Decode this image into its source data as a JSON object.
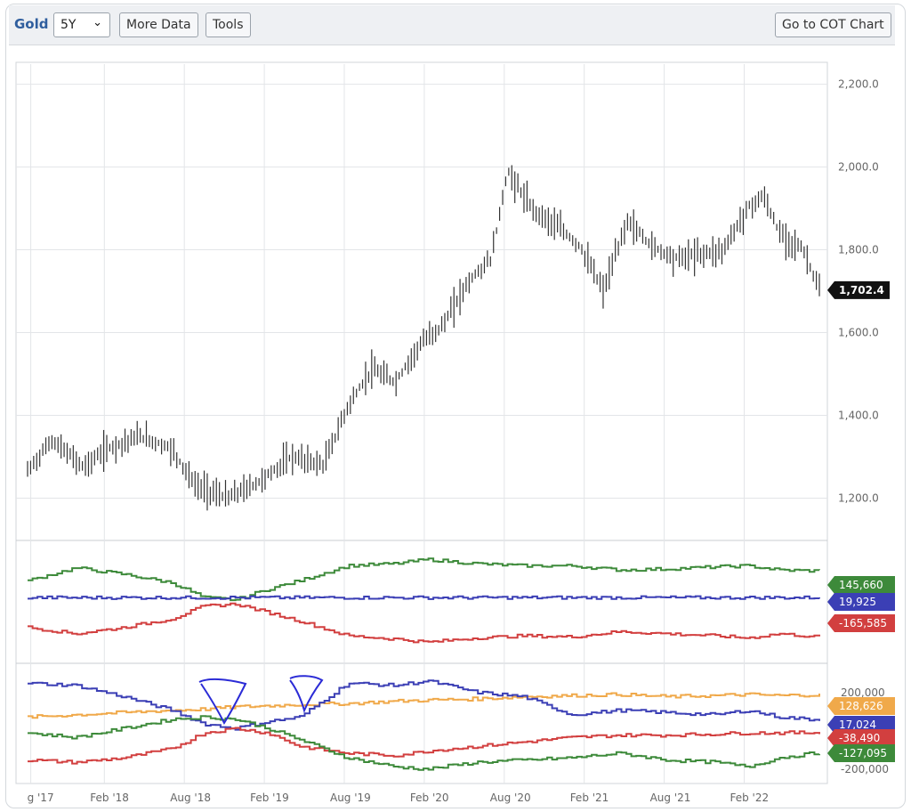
{
  "toolbar": {
    "symbol": "Gold",
    "period": "5Y",
    "more_data": "More Data",
    "tools": "Tools",
    "cot_chart": "Go to COT Chart"
  },
  "chart_data": [
    {
      "type": "line",
      "title": "",
      "y_axis_labels": [
        "2,200.0",
        "2,000.0",
        "1,800.0",
        "1,600.0",
        "1,400.0",
        "1,200.0"
      ],
      "y_ticks": [
        2200,
        2000,
        1800,
        1600,
        1400,
        1200
      ],
      "ylim": [
        1100,
        2240
      ],
      "last_value_label": "1,702.4",
      "last_value": 1702.4,
      "x_labels": [
        "g '17",
        "Feb '18",
        "Aug '18",
        "Feb '19",
        "Aug '19",
        "Feb '20",
        "Aug '20",
        "Feb '21",
        "Aug '21",
        "Feb '22"
      ],
      "x": [
        2017.6,
        2017.75,
        2017.95,
        2018.1,
        2018.3,
        2018.5,
        2018.65,
        2018.85,
        2019.05,
        2019.25,
        2019.45,
        2019.6,
        2019.75,
        2019.9,
        2020.05,
        2020.2,
        2020.35,
        2020.5,
        2020.6,
        2020.75,
        2020.9,
        2021.05,
        2021.2,
        2021.35,
        2021.5,
        2021.65,
        2021.8,
        2021.95,
        2022.1,
        2022.2,
        2022.3,
        2022.45,
        2022.55
      ],
      "values": [
        1265,
        1340,
        1275,
        1320,
        1350,
        1320,
        1230,
        1200,
        1240,
        1300,
        1280,
        1420,
        1510,
        1480,
        1570,
        1620,
        1720,
        1780,
        1990,
        1900,
        1860,
        1810,
        1700,
        1870,
        1810,
        1780,
        1790,
        1800,
        1900,
        1930,
        1840,
        1800,
        1702.4
      ]
    },
    {
      "type": "line",
      "series_labels": [
        "145,660",
        "19,925",
        "-165,585"
      ],
      "series_colors": [
        "#3d8a3a",
        "#3b3fb5",
        "#d23f3f"
      ],
      "x": [
        2017.6,
        2017.9,
        2018.2,
        2018.5,
        2018.7,
        2018.9,
        2019.1,
        2019.3,
        2019.6,
        2019.9,
        2020.1,
        2020.4,
        2020.7,
        2021.0,
        2021.3,
        2021.6,
        2021.9,
        2022.1,
        2022.3,
        2022.55
      ],
      "series_values": [
        [
          100,
          160,
          130,
          90,
          20,
          10,
          60,
          100,
          170,
          180,
          200,
          180,
          170,
          170,
          150,
          155,
          165,
          170,
          150,
          145.66
        ],
        [
          20,
          20,
          20,
          20,
          20,
          20,
          20,
          20,
          20,
          20,
          20,
          20,
          20,
          20,
          20,
          20,
          20,
          20,
          20,
          19.925
        ],
        [
          -120,
          -150,
          -120,
          -80,
          -20,
          -10,
          -50,
          -90,
          -160,
          -175,
          -190,
          -170,
          -160,
          -165,
          -140,
          -150,
          -160,
          -170,
          -150,
          -165.585
        ]
      ]
    },
    {
      "type": "line",
      "y_axis_labels": [
        "200,000",
        "-200,000"
      ],
      "series_labels": [
        "128,626",
        "17,024",
        "-38,490",
        "-127,095"
      ],
      "series_colors": [
        "#f0a94a",
        "#3b3fb5",
        "#d23f3f",
        "#3d8a3a"
      ],
      "x": [
        2017.6,
        2017.9,
        2018.2,
        2018.5,
        2018.7,
        2018.9,
        2019.1,
        2019.3,
        2019.6,
        2019.9,
        2020.1,
        2020.4,
        2020.7,
        2021.0,
        2021.3,
        2021.6,
        2021.9,
        2022.1,
        2022.3,
        2022.55
      ],
      "series_values": [
        [
          30,
          40,
          50,
          60,
          65,
          75,
          80,
          85,
          90,
          100,
          105,
          110,
          120,
          125,
          130,
          120,
          125,
          130,
          125,
          128.626
        ],
        [
          180,
          170,
          120,
          60,
          0,
          -20,
          10,
          30,
          180,
          170,
          190,
          140,
          120,
          40,
          60,
          50,
          40,
          60,
          30,
          17.024
        ],
        [
          -160,
          -170,
          -150,
          -110,
          -40,
          -20,
          -40,
          -100,
          -130,
          -140,
          -120,
          -100,
          -80,
          -60,
          -50,
          -50,
          -45,
          -40,
          -40,
          -38.49
        ],
        [
          -40,
          -60,
          -20,
          20,
          30,
          20,
          -20,
          -70,
          -150,
          -190,
          -200,
          -170,
          -160,
          -150,
          -130,
          -160,
          -170,
          -190,
          -150,
          -127.095
        ]
      ]
    }
  ]
}
